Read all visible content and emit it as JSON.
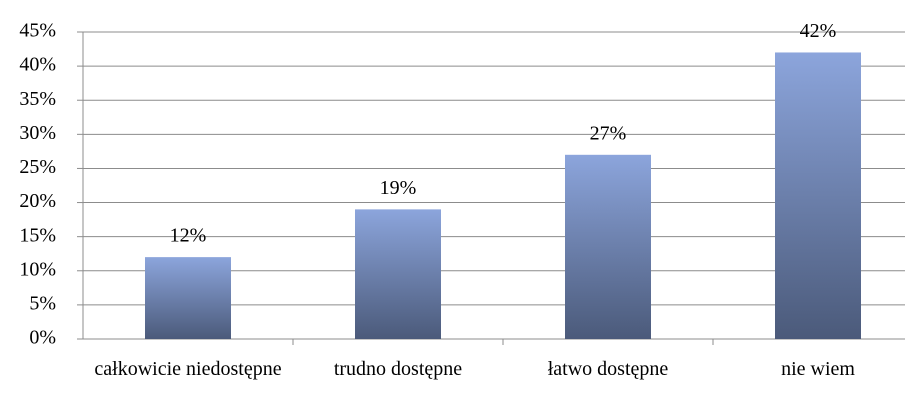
{
  "chart_data": {
    "type": "bar",
    "categories": [
      "całkowicie niedostępne",
      "trudno dostępne",
      "łatwo dostępne",
      "nie wiem"
    ],
    "values": [
      12,
      19,
      27,
      42
    ],
    "value_labels": [
      "12%",
      "19%",
      "27%",
      "42%"
    ],
    "colors": [
      "#8ca5dc",
      "#4b5a7a"
    ],
    "ylim": [
      0,
      45
    ],
    "yticks": [
      {
        "value": 0,
        "label": "0%"
      },
      {
        "value": 5,
        "label": "5%"
      },
      {
        "value": 10,
        "label": "10%"
      },
      {
        "value": 15,
        "label": "15%"
      },
      {
        "value": 20,
        "label": "20%"
      },
      {
        "value": 25,
        "label": "25%"
      },
      {
        "value": 30,
        "label": "30%"
      },
      {
        "value": 35,
        "label": "35%"
      },
      {
        "value": 40,
        "label": "40%"
      },
      {
        "value": 45,
        "label": "45%"
      }
    ],
    "grid": true
  }
}
